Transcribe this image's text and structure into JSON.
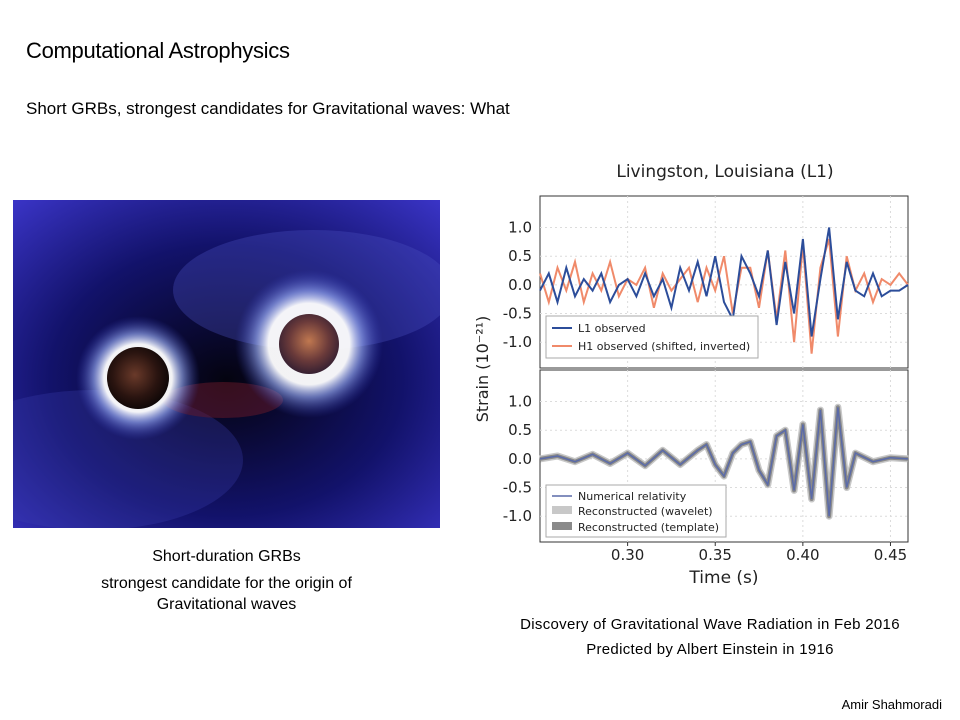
{
  "slide": {
    "title": "Computational Astrophysics",
    "subtitle": "Short GRBs, strongest candidates for Gravitational waves: What",
    "author": "Amir Shahmoradi"
  },
  "left_panel": {
    "caption_line1": "Short-duration GRBs",
    "caption_line2": "strongest candidate for the origin of",
    "caption_line3": "Gravitational waves"
  },
  "right_panel": {
    "caption_line1": "Discovery of Gravitational  Wave Radiation  in Feb 2016",
    "caption_line2": "Predicted  by Albert  Einstein  in 1916"
  },
  "colors": {
    "l1": "#2c4d9a",
    "h1": "#f08a6a",
    "nr": "#5a6aa8",
    "wavelet": "#c8c8c8",
    "template": "#8a8a8a",
    "space_dark": "#04030f",
    "space_blue": "#2a2fb0",
    "glow": "#dfe8ff"
  },
  "chart_data": [
    {
      "type": "line",
      "title": "Livingston, Louisiana (L1)",
      "ylabel": "Strain (10⁻²¹)",
      "xlim": [
        0.25,
        0.46
      ],
      "ylim": [
        -1.45,
        1.55
      ],
      "yticks": [
        "1.0",
        "0.5",
        "0.0",
        "-0.5",
        "-1.0"
      ],
      "yticks_values": [
        1.0,
        0.5,
        0.0,
        -0.5,
        -1.0
      ],
      "grid": true,
      "legend_position": "lower-left",
      "series": [
        {
          "name": "L1 observed",
          "x": [
            0.25,
            0.255,
            0.26,
            0.265,
            0.27,
            0.275,
            0.28,
            0.285,
            0.29,
            0.295,
            0.3,
            0.305,
            0.31,
            0.315,
            0.32,
            0.325,
            0.33,
            0.335,
            0.34,
            0.345,
            0.35,
            0.355,
            0.36,
            0.365,
            0.37,
            0.375,
            0.38,
            0.385,
            0.39,
            0.395,
            0.4,
            0.405,
            0.41,
            0.415,
            0.42,
            0.425,
            0.43,
            0.435,
            0.44,
            0.445,
            0.45,
            0.455,
            0.46
          ],
          "y": [
            -0.1,
            0.2,
            -0.3,
            0.3,
            -0.2,
            0.1,
            -0.1,
            0.2,
            -0.3,
            0.0,
            0.1,
            -0.2,
            0.2,
            -0.2,
            0.1,
            -0.4,
            0.3,
            -0.1,
            0.4,
            -0.2,
            0.5,
            -0.3,
            -0.6,
            0.5,
            0.2,
            -0.2,
            0.6,
            -0.7,
            0.4,
            -0.5,
            0.8,
            -0.9,
            0.1,
            1.0,
            -0.6,
            0.4,
            -0.1,
            -0.2,
            0.2,
            -0.2,
            -0.1,
            -0.1,
            0.0
          ]
        },
        {
          "name": "H1 observed (shifted, inverted)",
          "x": [
            0.25,
            0.255,
            0.26,
            0.265,
            0.27,
            0.275,
            0.28,
            0.285,
            0.29,
            0.295,
            0.3,
            0.305,
            0.31,
            0.315,
            0.32,
            0.325,
            0.33,
            0.335,
            0.34,
            0.345,
            0.35,
            0.355,
            0.36,
            0.365,
            0.37,
            0.375,
            0.38,
            0.385,
            0.39,
            0.395,
            0.4,
            0.405,
            0.41,
            0.415,
            0.42,
            0.425,
            0.43,
            0.435,
            0.44,
            0.445,
            0.45,
            0.455,
            0.46
          ],
          "y": [
            0.2,
            -0.3,
            0.3,
            -0.1,
            0.4,
            -0.3,
            0.2,
            -0.1,
            0.4,
            -0.2,
            0.1,
            0.0,
            0.3,
            -0.4,
            0.2,
            -0.1,
            0.1,
            0.3,
            -0.3,
            0.3,
            -0.1,
            0.5,
            -0.5,
            0.3,
            0.3,
            -0.4,
            0.6,
            -0.6,
            0.6,
            -1.0,
            0.7,
            -1.2,
            0.3,
            0.8,
            -0.9,
            0.5,
            -0.1,
            0.2,
            -0.3,
            0.1,
            0.0,
            0.2,
            0.0
          ]
        }
      ]
    },
    {
      "type": "line",
      "xlabel": "Time (s)",
      "ylabel": "Strain (10⁻²¹)",
      "xlim": [
        0.25,
        0.46
      ],
      "ylim": [
        -1.45,
        1.55
      ],
      "xticks": [
        "0.30",
        "0.35",
        "0.40",
        "0.45"
      ],
      "xticks_values": [
        0.3,
        0.35,
        0.4,
        0.45
      ],
      "yticks": [
        "1.0",
        "0.5",
        "0.0",
        "-0.5",
        "-1.0"
      ],
      "yticks_values": [
        1.0,
        0.5,
        0.0,
        -0.5,
        -1.0
      ],
      "grid": true,
      "legend_position": "lower-left",
      "series": [
        {
          "name": "Numerical relativity",
          "x": [
            0.25,
            0.26,
            0.27,
            0.28,
            0.29,
            0.3,
            0.31,
            0.32,
            0.33,
            0.34,
            0.345,
            0.35,
            0.355,
            0.36,
            0.365,
            0.37,
            0.375,
            0.38,
            0.385,
            0.39,
            0.395,
            0.4,
            0.405,
            0.41,
            0.415,
            0.42,
            0.425,
            0.43,
            0.44,
            0.45,
            0.46
          ],
          "y": [
            0.0,
            0.05,
            -0.05,
            0.08,
            -0.08,
            0.1,
            -0.12,
            0.15,
            -0.1,
            0.15,
            0.25,
            -0.1,
            -0.3,
            0.1,
            0.25,
            0.3,
            -0.2,
            -0.45,
            0.4,
            0.5,
            -0.55,
            0.6,
            -0.7,
            0.85,
            -1.0,
            0.9,
            -0.5,
            0.1,
            -0.05,
            0.02,
            0.0
          ]
        },
        {
          "name": "Reconstructed (wavelet)"
        },
        {
          "name": "Reconstructed (template)"
        }
      ]
    }
  ]
}
